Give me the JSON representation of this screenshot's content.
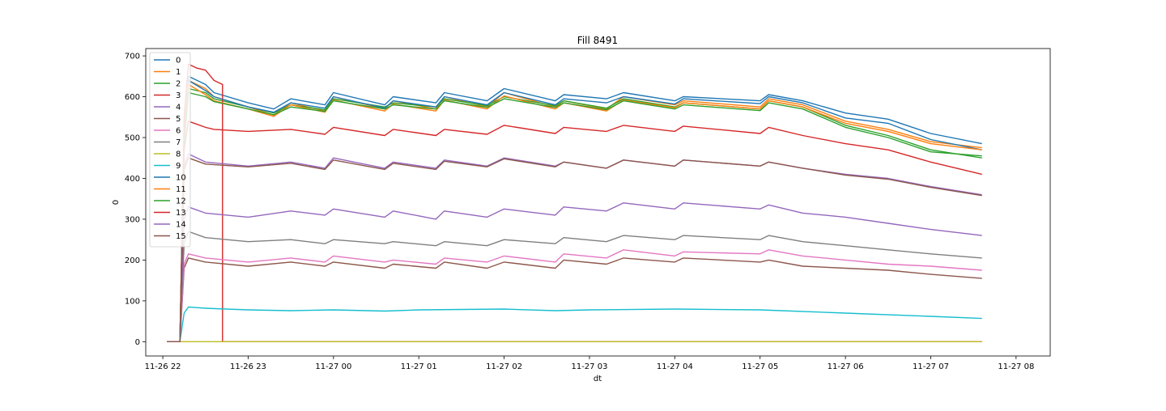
{
  "chart_data": {
    "type": "line",
    "title": "Fill 8491",
    "xlabel": "dt",
    "ylabel": "0",
    "x_unit": "hours",
    "xlim": [
      21.8,
      32.4
    ],
    "ylim": [
      -35,
      718
    ],
    "xticks": [
      {
        "value": 22,
        "label": "11-26 22"
      },
      {
        "value": 23,
        "label": "11-26 23"
      },
      {
        "value": 24,
        "label": "11-27 00"
      },
      {
        "value": 25,
        "label": "11-27 01"
      },
      {
        "value": 26,
        "label": "11-27 02"
      },
      {
        "value": 27,
        "label": "11-27 03"
      },
      {
        "value": 28,
        "label": "11-27 04"
      },
      {
        "value": 29,
        "label": "11-27 05"
      },
      {
        "value": 30,
        "label": "11-27 06"
      },
      {
        "value": 31,
        "label": "11-27 07"
      },
      {
        "value": 32,
        "label": "11-27 08"
      }
    ],
    "yticks": [
      0,
      100,
      200,
      300,
      400,
      500,
      600,
      700
    ],
    "grid": false,
    "legend_position": "upper-left",
    "series": [
      {
        "name": "0",
        "color": "#1f77b4",
        "x": [
          22.05,
          22.2,
          22.25,
          22.3,
          22.5,
          22.6,
          23.0,
          23.3,
          23.5,
          23.9,
          24.0,
          24.6,
          24.7,
          25.2,
          25.3,
          25.8,
          26.0,
          26.6,
          26.7,
          27.2,
          27.4,
          28.0,
          28.1,
          29.0,
          29.1,
          29.5,
          30.0,
          30.5,
          31.0,
          31.6
        ],
        "y": [
          0,
          0,
          510,
          650,
          630,
          610,
          585,
          570,
          595,
          580,
          610,
          580,
          600,
          585,
          610,
          590,
          620,
          590,
          605,
          595,
          610,
          590,
          600,
          590,
          605,
          590,
          560,
          545,
          510,
          485
        ]
      },
      {
        "name": "1",
        "color": "#ff7f0e",
        "x": [
          22.05,
          22.2,
          22.25,
          22.3,
          22.5,
          22.6,
          23.0,
          23.3,
          23.5,
          23.9,
          24.0,
          24.6,
          24.7,
          25.2,
          25.3,
          25.8,
          26.0,
          26.6,
          26.7,
          27.2,
          27.4,
          28.0,
          28.1,
          29.0,
          29.1,
          29.5,
          30.0,
          30.5,
          31.0,
          31.6
        ],
        "y": [
          0,
          0,
          520,
          640,
          620,
          600,
          575,
          555,
          585,
          565,
          600,
          570,
          590,
          570,
          600,
          575,
          610,
          575,
          590,
          570,
          600,
          580,
          590,
          575,
          595,
          580,
          540,
          520,
          490,
          475
        ]
      },
      {
        "name": "2",
        "color": "#2ca02c",
        "x": [
          22.05,
          22.2,
          22.25,
          22.3,
          22.5,
          22.6,
          23.0,
          23.3,
          23.5,
          23.9,
          24.0,
          24.6,
          24.7,
          25.2,
          25.3,
          25.8,
          26.0,
          26.6,
          26.7,
          27.2,
          27.4,
          28.0,
          28.1,
          29.0,
          29.1,
          29.5,
          30.0,
          30.5,
          31.0,
          31.6
        ],
        "y": [
          0,
          0,
          500,
          620,
          610,
          595,
          575,
          560,
          580,
          568,
          595,
          575,
          585,
          575,
          595,
          578,
          600,
          578,
          590,
          572,
          595,
          575,
          585,
          570,
          590,
          575,
          530,
          505,
          470,
          450
        ]
      },
      {
        "name": "3",
        "color": "#d62728",
        "x": [
          22.05,
          22.2,
          22.25,
          22.3,
          22.4,
          22.5,
          22.6,
          22.7,
          22.7,
          23.0,
          23.5,
          23.9,
          24.0,
          24.6,
          25.2,
          25.3,
          25.8,
          26.0,
          26.6,
          26.7,
          27.2,
          27.4,
          28.0,
          28.1,
          29.0,
          29.1,
          29.5,
          30.0,
          30.5,
          31.0,
          31.6
        ],
        "y": [
          0,
          0,
          550,
          680,
          670,
          665,
          640,
          630,
          0,
          0,
          0,
          0,
          0,
          0,
          0,
          0,
          0,
          0,
          0,
          0,
          0,
          0,
          0,
          0,
          0,
          0,
          0,
          0,
          0,
          0,
          0
        ]
      },
      {
        "name": "4",
        "color": "#9467bd",
        "x": [
          22.05,
          22.2,
          22.25,
          22.3,
          22.5,
          23.0,
          23.5,
          23.9,
          24.0,
          24.6,
          24.7,
          25.2,
          25.3,
          25.8,
          26.0,
          26.6,
          26.7,
          27.2,
          27.4,
          28.0,
          28.1,
          29.0,
          29.1,
          29.5,
          30.0,
          30.5,
          31.0,
          31.6
        ],
        "y": [
          0,
          0,
          430,
          460,
          440,
          430,
          440,
          425,
          450,
          425,
          440,
          425,
          445,
          430,
          450,
          430,
          440,
          425,
          445,
          430,
          445,
          430,
          440,
          425,
          410,
          400,
          380,
          360
        ]
      },
      {
        "name": "5",
        "color": "#8c564b",
        "x": [
          22.05,
          22.2,
          22.25,
          22.3,
          22.5,
          23.0,
          23.5,
          23.9,
          24.0,
          24.6,
          24.7,
          25.2,
          25.3,
          25.8,
          26.0,
          26.6,
          26.7,
          27.2,
          27.4,
          28.0,
          28.1,
          29.0,
          29.1,
          29.5,
          30.0,
          30.5,
          31.0,
          31.6
        ],
        "y": [
          0,
          0,
          180,
          205,
          195,
          185,
          195,
          185,
          195,
          180,
          190,
          180,
          195,
          180,
          195,
          180,
          200,
          190,
          205,
          195,
          205,
          195,
          200,
          185,
          180,
          175,
          165,
          155
        ]
      },
      {
        "name": "6",
        "color": "#e377c2",
        "x": [
          22.05,
          22.2,
          22.25,
          22.3,
          22.5,
          23.0,
          23.5,
          23.9,
          24.0,
          24.6,
          24.7,
          25.2,
          25.3,
          25.8,
          26.0,
          26.6,
          26.7,
          27.2,
          27.4,
          28.0,
          28.1,
          29.0,
          29.1,
          29.5,
          30.0,
          30.5,
          31.0,
          31.6
        ],
        "y": [
          0,
          0,
          190,
          215,
          205,
          195,
          205,
          195,
          210,
          195,
          200,
          190,
          205,
          195,
          210,
          195,
          215,
          205,
          225,
          210,
          220,
          215,
          225,
          210,
          200,
          190,
          185,
          175
        ]
      },
      {
        "name": "7",
        "color": "#7f7f7f",
        "x": [
          22.05,
          22.2,
          22.25,
          22.3,
          22.5,
          23.0,
          23.5,
          23.9,
          24.0,
          24.6,
          24.7,
          25.2,
          25.3,
          25.8,
          26.0,
          26.6,
          26.7,
          27.2,
          27.4,
          28.0,
          28.1,
          29.0,
          29.1,
          29.5,
          30.0,
          30.5,
          31.0,
          31.6
        ],
        "y": [
          0,
          0,
          240,
          270,
          255,
          245,
          250,
          240,
          250,
          240,
          245,
          235,
          245,
          235,
          250,
          240,
          255,
          245,
          260,
          250,
          260,
          250,
          260,
          245,
          235,
          225,
          215,
          205
        ]
      },
      {
        "name": "8",
        "color": "#bcbd22",
        "x": [
          22.05,
          31.6
        ],
        "y": [
          0,
          0
        ]
      },
      {
        "name": "9",
        "color": "#17becf",
        "x": [
          22.05,
          22.2,
          22.25,
          22.3,
          22.5,
          23.0,
          23.5,
          24.0,
          24.6,
          25.0,
          26.0,
          26.6,
          27.0,
          28.0,
          29.0,
          30.0,
          31.0,
          31.6
        ],
        "y": [
          0,
          0,
          70,
          85,
          82,
          78,
          76,
          78,
          75,
          78,
          80,
          76,
          78,
          80,
          78,
          70,
          62,
          57
        ]
      },
      {
        "name": "10",
        "color": "#1f77b4",
        "x": [
          22.05,
          22.2,
          22.25,
          22.3,
          22.5,
          22.6,
          23.0,
          23.3,
          23.5,
          23.9,
          24.0,
          24.6,
          24.7,
          25.2,
          25.3,
          25.8,
          26.0,
          26.6,
          26.7,
          27.2,
          27.4,
          28.0,
          28.1,
          29.0,
          29.1,
          29.5,
          30.0,
          30.5,
          31.0,
          31.6
        ],
        "y": [
          0,
          0,
          500,
          640,
          615,
          600,
          575,
          562,
          585,
          572,
          600,
          572,
          590,
          575,
          600,
          580,
          610,
          580,
          595,
          585,
          600,
          582,
          595,
          583,
          600,
          585,
          548,
          535,
          495,
          470
        ]
      },
      {
        "name": "11",
        "color": "#ff7f0e",
        "x": [
          22.05,
          22.2,
          22.25,
          22.3,
          22.5,
          22.6,
          23.0,
          23.3,
          23.5,
          23.9,
          24.0,
          24.6,
          24.7,
          25.2,
          25.3,
          25.8,
          26.0,
          26.6,
          26.7,
          27.2,
          27.4,
          28.0,
          28.1,
          29.0,
          29.1,
          29.5,
          30.0,
          30.5,
          31.0,
          31.6
        ],
        "y": [
          0,
          0,
          490,
          630,
          605,
          590,
          570,
          552,
          580,
          562,
          592,
          565,
          582,
          565,
          592,
          570,
          602,
          570,
          585,
          565,
          592,
          573,
          585,
          570,
          590,
          575,
          535,
          515,
          485,
          470
        ]
      },
      {
        "name": "12",
        "color": "#2ca02c",
        "x": [
          22.05,
          22.2,
          22.25,
          22.3,
          22.5,
          22.6,
          23.0,
          23.3,
          23.5,
          23.9,
          24.0,
          24.6,
          24.7,
          25.2,
          25.3,
          25.8,
          26.0,
          26.6,
          26.7,
          27.2,
          27.4,
          28.0,
          28.1,
          29.0,
          29.1,
          29.5,
          30.0,
          30.5,
          31.0,
          31.6
        ],
        "y": [
          0,
          0,
          480,
          610,
          600,
          588,
          570,
          556,
          575,
          564,
          590,
          570,
          580,
          570,
          590,
          574,
          595,
          574,
          585,
          568,
          590,
          570,
          580,
          566,
          585,
          570,
          525,
          500,
          465,
          455
        ]
      },
      {
        "name": "13",
        "color": "#d62728",
        "x": [
          22.05,
          22.2,
          22.25,
          22.3,
          22.5,
          22.6,
          23.0,
          23.5,
          23.9,
          24.0,
          24.6,
          24.7,
          25.2,
          25.3,
          25.8,
          26.0,
          26.6,
          26.7,
          27.2,
          27.4,
          28.0,
          28.1,
          29.0,
          29.1,
          29.5,
          30.0,
          30.5,
          31.0,
          31.6
        ],
        "y": [
          0,
          0,
          470,
          540,
          525,
          520,
          515,
          520,
          508,
          525,
          505,
          520,
          505,
          520,
          508,
          530,
          510,
          525,
          515,
          530,
          515,
          528,
          510,
          525,
          505,
          485,
          470,
          440,
          410
        ]
      },
      {
        "name": "14",
        "color": "#9467bd",
        "x": [
          22.05,
          22.2,
          22.25,
          22.3,
          22.5,
          23.0,
          23.5,
          23.9,
          24.0,
          24.6,
          24.7,
          25.2,
          25.3,
          25.8,
          26.0,
          26.6,
          26.7,
          27.2,
          27.4,
          28.0,
          28.1,
          29.0,
          29.1,
          29.5,
          30.0,
          30.5,
          31.0,
          31.6
        ],
        "y": [
          0,
          0,
          300,
          330,
          315,
          305,
          320,
          310,
          325,
          305,
          320,
          300,
          320,
          305,
          325,
          310,
          330,
          320,
          340,
          325,
          340,
          325,
          335,
          315,
          305,
          290,
          275,
          260
        ]
      },
      {
        "name": "15",
        "color": "#8c564b",
        "x": [
          22.05,
          22.2,
          22.25,
          22.3,
          22.5,
          23.0,
          23.5,
          23.9,
          24.0,
          24.6,
          24.7,
          25.2,
          25.3,
          25.8,
          26.0,
          26.6,
          26.7,
          27.2,
          27.4,
          28.0,
          28.1,
          29.0,
          29.1,
          29.5,
          30.0,
          30.5,
          31.0,
          31.6
        ],
        "y": [
          0,
          0,
          420,
          450,
          435,
          428,
          437,
          422,
          445,
          422,
          437,
          422,
          442,
          428,
          448,
          428,
          440,
          425,
          445,
          430,
          445,
          430,
          440,
          425,
          408,
          398,
          378,
          358
        ]
      }
    ]
  }
}
